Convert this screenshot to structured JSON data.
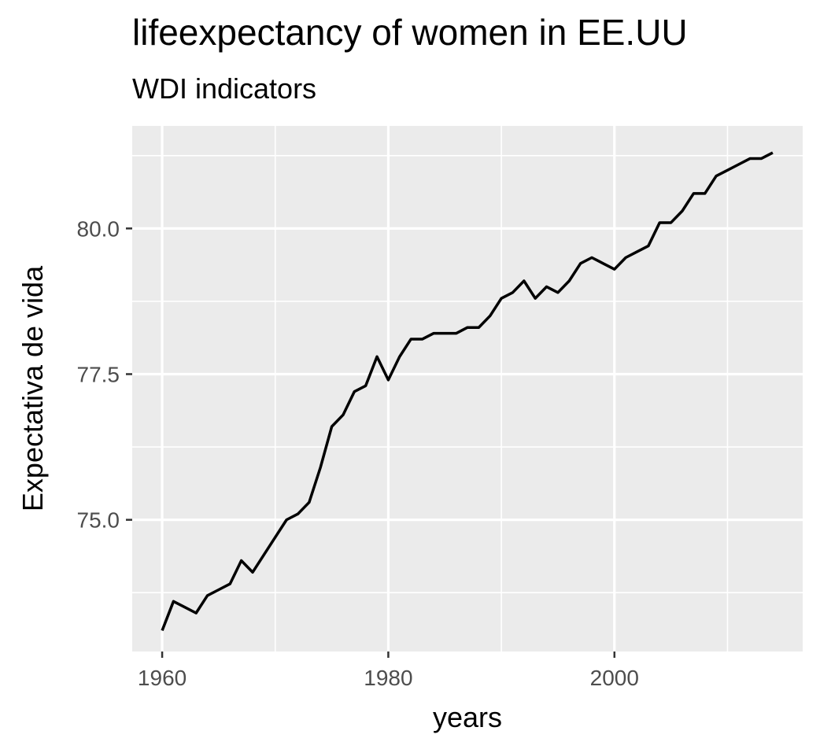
{
  "chart_data": {
    "type": "line",
    "title": "lifeexpectancy of women in EE.UU",
    "subtitle": "WDI indicators",
    "xlabel": "years",
    "ylabel": "Expectativa de vida",
    "xlim": [
      1957.35,
      2016.65
    ],
    "ylim": [
      72.74,
      81.76
    ],
    "x_ticks": [
      1960,
      1980,
      2000
    ],
    "x_tick_labels": [
      "1960",
      "1980",
      "2000"
    ],
    "x_minor_ticks": [
      1970,
      1990,
      2010
    ],
    "y_ticks": [
      75.0,
      77.5,
      80.0
    ],
    "y_tick_labels": [
      "75.0",
      "77.5",
      "80.0"
    ],
    "y_minor_ticks": [
      73.75,
      76.25,
      78.75,
      81.25
    ],
    "grid": true,
    "colors": {
      "panel": "#ebebeb",
      "grid": "#ffffff",
      "line": "#000000",
      "tick": "#333333"
    },
    "series": [
      {
        "x": [
          1960,
          1961,
          1962,
          1963,
          1964,
          1965,
          1966,
          1967,
          1968,
          1969,
          1970,
          1971,
          1972,
          1973,
          1974,
          1975,
          1976,
          1977,
          1978,
          1979,
          1980,
          1981,
          1982,
          1983,
          1984,
          1985,
          1986,
          1987,
          1988,
          1989,
          1990,
          1991,
          1992,
          1993,
          1994,
          1995,
          1996,
          1997,
          1998,
          1999,
          2000,
          2001,
          2002,
          2003,
          2004,
          2005,
          2006,
          2007,
          2008,
          2009,
          2010,
          2011,
          2012,
          2013,
          2014
        ],
        "values": [
          73.1,
          73.6,
          73.5,
          73.4,
          73.7,
          73.8,
          73.9,
          74.3,
          74.1,
          74.4,
          74.7,
          75.0,
          75.1,
          75.3,
          75.9,
          76.6,
          76.8,
          77.2,
          77.3,
          77.8,
          77.4,
          77.8,
          78.1,
          78.1,
          78.2,
          78.2,
          78.2,
          78.3,
          78.3,
          78.5,
          78.8,
          78.9,
          79.1,
          78.8,
          79.0,
          78.9,
          79.1,
          79.4,
          79.5,
          79.4,
          79.3,
          79.5,
          79.6,
          79.7,
          80.1,
          80.1,
          80.3,
          80.6,
          80.6,
          80.9,
          81.0,
          81.1,
          81.2,
          81.2,
          81.3
        ]
      }
    ]
  }
}
